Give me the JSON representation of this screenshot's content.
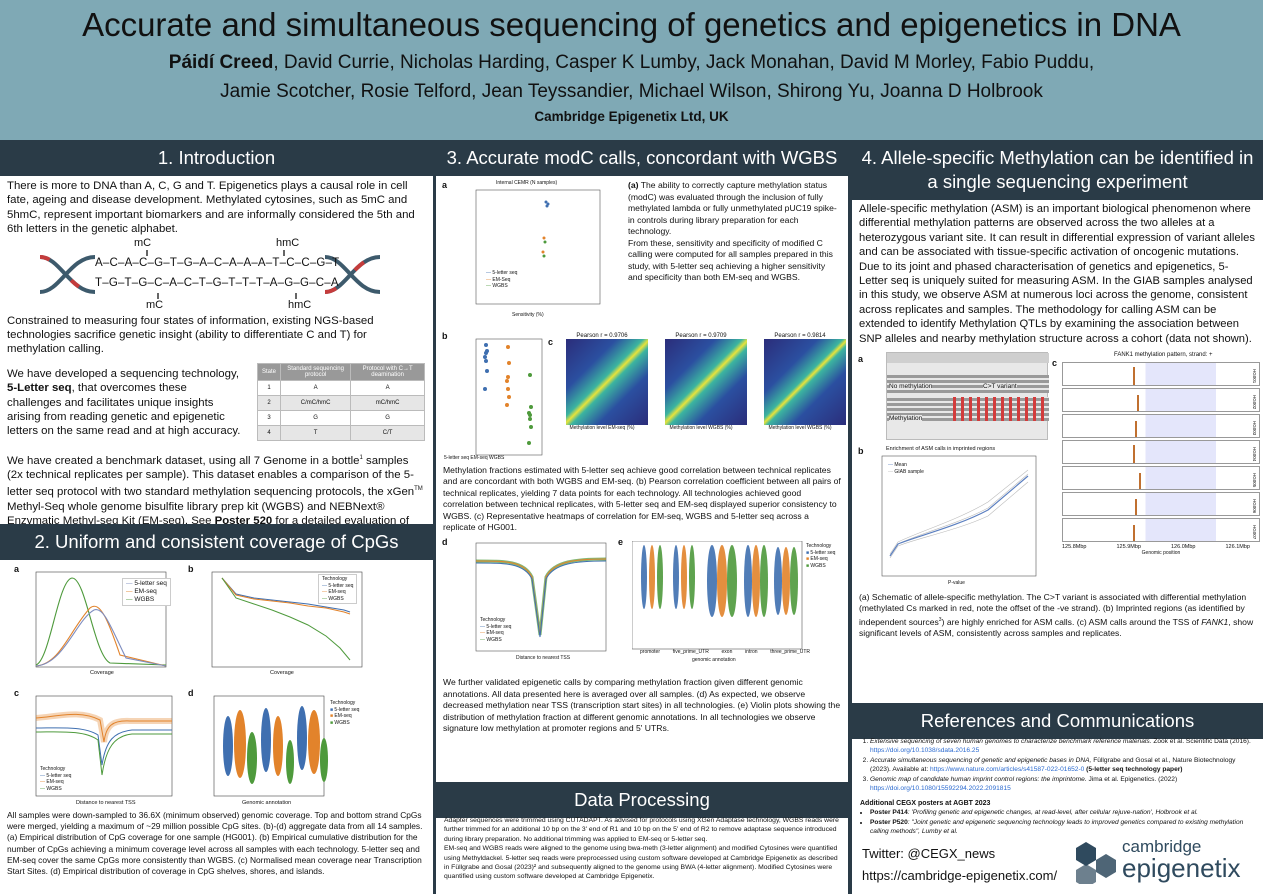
{
  "header": {
    "title": "Accurate and simultaneous sequencing of genetics and epigenetics in DNA",
    "lead_author": "Páidí Creed",
    "authors_rest": ", David Currie, Nicholas Harding, Casper K Lumby, Jack Monahan, David M Morley, Fabio Puddu, Jamie Scotcher, Rosie Telford, Jean Teyssandier, Michael Wilson, Shirong Yu, Joanna D Holbrook",
    "affiliation": "Cambridge Epigenetix Ltd, UK"
  },
  "s1": {
    "heading": "1. Introduction",
    "p1": "There is more to DNA than A, C, G and T. Epigenetics plays a causal role in cell fate, ageing and disease development. Methylated cytosines, such as 5mC and 5hmC, represent important biomarkers and are informally considered the 5th and 6th letters in the genetic alphabet.",
    "dna_top": "A–C–A–C–G–T–G–A–C–A–A–A–T–C–C–G–T",
    "dna_bottom": "T–G–T–G–C–A–C–T–G–T–T–T–A–G–G–C–A",
    "mark_mc": "mC",
    "mark_hmc": "hmC",
    "p2": "Constrained to measuring four states of information, existing NGS-based technologies sacrifice genetic insight (ability to differentiate C and T) for methylation calling.",
    "p3_pre": "We have developed a sequencing technology, ",
    "p3_bold": "5-Letter seq",
    "p3_post": ", that overcomes these challenges and facilitates unique insights arising from reading genetic and epigenetic letters on the same read and at high accuracy.",
    "table_headers": [
      "State",
      "Standard sequencing protocol",
      "Protocol with C→T deamination"
    ],
    "table_rows": [
      [
        "1",
        "A",
        "A"
      ],
      [
        "2",
        "C/mC/hmC",
        "mC/hmC"
      ],
      [
        "3",
        "G",
        "G"
      ],
      [
        "4",
        "T",
        "C/T"
      ]
    ],
    "p4_a": "We have created a benchmark dataset, using all 7 Genome in a bottle",
    "p4_sup1": "1",
    "p4_b": " samples (2x technical replicates per sample). This dataset enables a comparison of the 5-letter seq protocol with two standard methylation sequencing protocols, the xGen",
    "p4_sup2": "TM",
    "p4_c": " Methyl-Seq whole genome bisulfite library prep kit (WGBS) and NEBNext® Enzymatic Methyl-seq Kit (EM-seq). See ",
    "p4_bold": "Poster 520",
    "p4_d": " for a detailed evaluation of SNP calling using 5-letter seq, also using this data-set"
  },
  "s2": {
    "heading": "2. Uniform and consistent coverage of CpGs",
    "legend_a": [
      "5-letter seq",
      "EM-seq",
      "WGBS"
    ],
    "legend_title": "Technology",
    "a_xlabel": "Coverage",
    "a_ylabel": "Normalised Count",
    "a_xticks": [
      "0",
      "10",
      "20",
      "30",
      "40",
      "50",
      "60",
      "70"
    ],
    "b_xlabel": "Coverage",
    "b_ylabel": "# CpG sites (×10⁷)",
    "c_xlabel": "Distance to nearest TSS",
    "c_ylabel": "Normalised coverage",
    "d_xlabel": "Genomic annotation",
    "d_ylabel": "Coverage",
    "d_categories": [
      "islands",
      "shores",
      "shelves"
    ],
    "caption": "All samples were down-sampled to 36.6X (minimum observed) genomic coverage. Top and bottom strand CpGs were merged, yielding a maximum of ~29 million possible CpG sites. (b)-(d) aggregate data from all 14 samples. (a) Empirical distribution of CpG coverage for one sample (HG001). (b) Empirical cumulative distribution for the number of CpGs achieving a minimum coverage level across all samples with each technology. 5-letter seq and EM-seq cover the same CpGs more consistently than WGBS. (c) Normalised mean coverage near Transcription Start Sites. (d) Empirical distribution of coverage in CpG shelves, shores, and islands."
  },
  "s3": {
    "heading": "3. Accurate modC calls, concordant with WGBS",
    "a_title": "Internal CEMR (N samples)",
    "a_xlabel": "Sensitivity (%)",
    "a_ylabel": "Specificity (%)",
    "a_legend": [
      "5-letter seq",
      "EM-Seq",
      "WGBS"
    ],
    "a_text_pre": "(a)",
    "a_text": " The ability to correctly capture methylation status (modC) was evaluated through the inclusion of fully methylated lambda or fully unmethylated pUC19 spike-in controls during library preparation for each technology.\nFrom these, sensitivity and specificity of modified C calling were computed for all samples prepared in this study, with 5-letter seq achieving a higher sensitivity and specificity than both EM-seq and WGBS.",
    "b_ylabel": "Pearson Correlation Coeff",
    "b_xlabel": "Technology",
    "b_cats": [
      "5-letter seq",
      "EM-seq",
      "WGBS"
    ],
    "b_yticks": [
      "0.970",
      "0.965",
      "0.960",
      "0.955",
      "0.950",
      "0.945",
      "0.940"
    ],
    "c_titles": [
      "Pearson r = 0.9706",
      "Pearson r = 0.9709",
      "Pearson r = 0.9814"
    ],
    "c_xlabels": [
      "Methylation level EM-seq (%)",
      "Methylation level WGBS (%)",
      "Methylation level WGBS (%)"
    ],
    "c_ylabels": [
      "Methylation level 5-letter seq (%)",
      "Methylation level 5-letter seq (%)",
      "Methylation level EM-seq (%)"
    ],
    "caption_bc": "Methylation fractions estimated with 5-letter seq achieve good correlation between technical replicates and are concordant with both WGBS and EM-seq. (b) Pearson correlation coefficient between all pairs of technical replicates, yielding 7 data points for each technology. All technologies achieved good correlation between technical replicates, with 5-letter seq and EM-seq displayed superior consistency to WGBS. (c) Representative heatmaps of correlation for EM-seq, WGBS and 5-letter seq across a replicate of HG001.",
    "d_xlabel": "Distance to nearest TSS",
    "d_ylabel": "Methylation fraction",
    "e_xlabel": "genomic annotation",
    "e_cats": [
      "promoter",
      "five_prime_UTR",
      "exon",
      "intron",
      "three_prime_UTR"
    ],
    "caption_de": "We further validated epigenetic calls by comparing methylation fraction given different genomic annotations. All data presented here is averaged over all samples. (d) As expected, we observe decreased methylation near TSS (transcription start sites) in all technologies. (e) Violin plots showing the distribution of methylation fraction at different genomic annotations. In all technologies we observe signature low methylation at promoter regions and 5' UTRs."
  },
  "dp": {
    "heading": "Data Processing",
    "text": "Adapter sequences were trimmed using CUTADAPT. As advised for protocols using XGen Adaptase technology, WGBS reads were further trimmed for an additional 10 bp on the 3' end of R1 and 10 bp on the 5' end of R2 to remove adaptase sequence introduced during library preparation. No additional trimming was applied to EM-seq or 5-letter seq.\nEM-seq and WGBS reads were aligned to the genome using bwa-meth (3-letter alignment) and modified Cytosines were quantified using Methyldackel. 5-letter seq reads were preprocessed using custom software developed at Cambridge Epigenetix as described in Füllgrabe and Gosal (2023)² and subsequently aligned to the genome using BWA (4-letter alignment). Modified Cytosines were quantified using custom software developed at Cambridge Epigenetix."
  },
  "s4": {
    "heading": "4. Allele-specific Methylation can be identified in a single sequencing experiment",
    "p1": "Allele-specific methylation (ASM) is an important biological phenomenon where differential methylation patterns are observed across the two alleles at a heterozygous variant site. It can result in differential expression of variant alleles and can be associated with tissue-specific activation of oncogenic mutations.\nDue to its joint and phased characterisation of genetics and epigenetics, 5-Letter seq is uniquely suited for measuring ASM. In the GIAB samples analysed in this study, we observe ASM at numerous loci across the genome, consistent across replicates and samples. The methodology for calling ASM can be extended to identify Methylation QTLs by examining the association between SNP alleles and nearby methylation structure across a cohort (data not shown).",
    "a_no_meth": "No methylation",
    "a_variant": "C>T variant",
    "a_meth": "Methylation",
    "b_title": "Enrichment of ASM calls in imprinted regions",
    "b_legend": [
      "Mean",
      "GIAB sample"
    ],
    "b_xlabel": "P-value",
    "b_ylabel": "Ratio of enrichment",
    "c_title": "FANK1 methylation pattern, strand: +",
    "c_rows": [
      "HG001",
      "HG002",
      "HG003",
      "HG004",
      "HG005",
      "HG006",
      "HG007"
    ],
    "c_xticks": [
      "125.8Mbp",
      "125.9Mbp",
      "126.0Mbp",
      "126.1Mbp"
    ],
    "c_xlabel": "Genomic position",
    "c_ylabel": "P-value",
    "caption_pre": "(a) Schematic of allele-specific methylation. The C>T variant is associated with differential methylation (methylated Cs marked in red, note the offset of the -ve strand). (b) Imprinted regions (as identified by independent sources",
    "caption_sup": "3",
    "caption_mid": ") are highly enriched for ASM calls. (c) ASM calls around the TSS of ",
    "caption_ital": "FANK1",
    "caption_post": ", show significant levels of ASM, consistently across samples and replicates."
  },
  "refs": {
    "heading": "References and Communications",
    "items": [
      {
        "ital": "Extensive sequencing of seven human genomes to characterize benchmark reference materials.",
        "rest": " Zook et al. Scientific Data (2016).",
        "link": "https://doi.org/10.1038/sdata.2016.25",
        "tail": ""
      },
      {
        "ital": "Accurate simultaneous sequencing of genetic and epigenetic bases in DNA,",
        "rest": " Füllgrabe and Gosal et al., Nature Biotechnology (2023). Available at: ",
        "link": "https://www.nature.com/articles/s41587-022-01652-0",
        "tail": " (5-letter seq technology paper)"
      },
      {
        "ital": "Genomic map of candidate human imprint control regions: the imprintome.",
        "rest": " Jima et al. Epigenetics. (2022)",
        "link": "https://doi.org/10.1080/15592294.2022.2091815",
        "tail": ""
      }
    ],
    "additional_heading": "Additional CEGX posters at AGBT 2023",
    "posters": [
      {
        "bold": "Poster P414",
        "text": ": 'Profiling genetic and epigenetic changes, at read-level, after cellular rejuve-nation', Holbrook et al."
      },
      {
        "bold": "Poster P520",
        "text": ": \"Joint genetic and epigenetic sequencing technology leads to improved genetics compared to existing methylation calling methods\", Lumby et al."
      }
    ],
    "twitter": "Twitter: @CEGX_news",
    "website": "https://cambridge-epigenetix.com/",
    "logo_line1": "cambridge",
    "logo_line2": "epigenetix"
  },
  "colors": {
    "header_bg": "#7fa9b5",
    "section_bg": "#2a3b47",
    "s5": "#3f6fb0",
    "em": "#e2832b",
    "wgbs": "#4e9a3c",
    "logo": "#2f4a5e"
  }
}
